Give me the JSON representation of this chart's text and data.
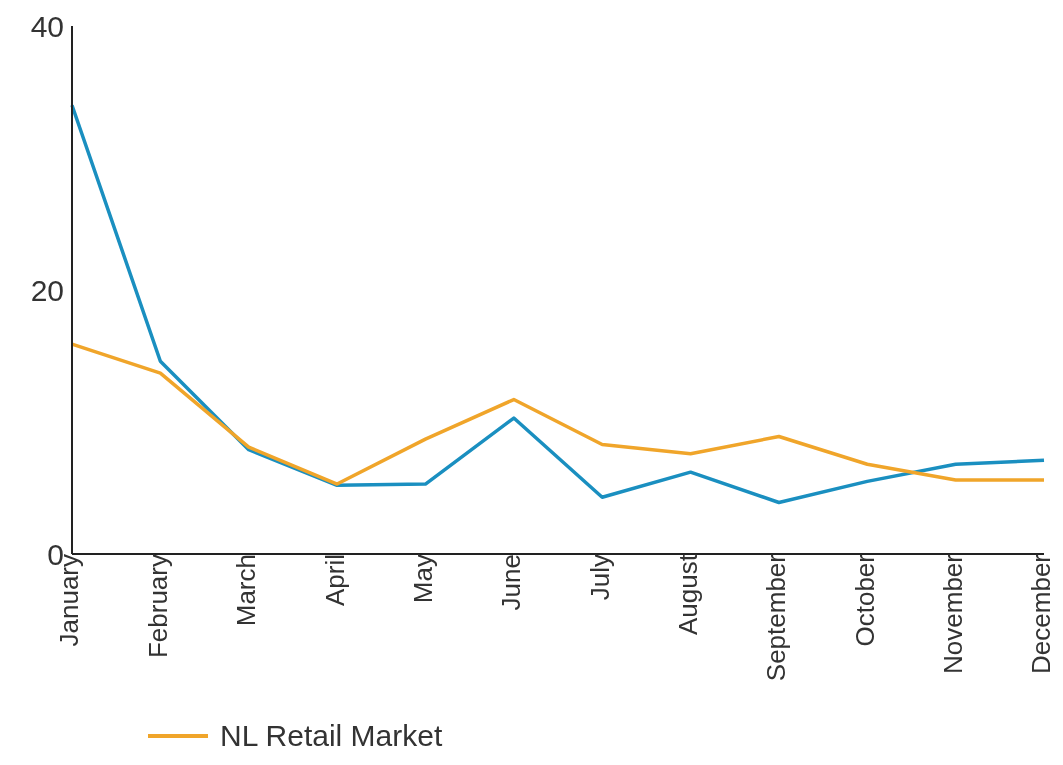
{
  "chart_data": {
    "type": "line",
    "categories": [
      "January",
      "February",
      "March",
      "April",
      "May",
      "June",
      "July",
      "August",
      "September",
      "October",
      "November",
      "December"
    ],
    "series": [
      {
        "color": "#1a8fc0",
        "values": [
          34,
          14.6,
          7.9,
          5.2,
          5.3,
          10.3,
          4.3,
          6.2,
          3.9,
          5.5,
          6.8,
          7.1
        ]
      },
      {
        "name": "NL Retail Market",
        "color": "#f0a52a",
        "values": [
          15.9,
          13.7,
          8.1,
          5.3,
          8.7,
          11.7,
          8.3,
          7.6,
          8.9,
          6.8,
          5.6,
          5.6
        ]
      }
    ],
    "ylim": [
      0,
      40
    ],
    "yticks": [
      0,
      20,
      40
    ],
    "grid": false,
    "legend": "bottom left",
    "marker": "none",
    "line_style": "solid"
  }
}
